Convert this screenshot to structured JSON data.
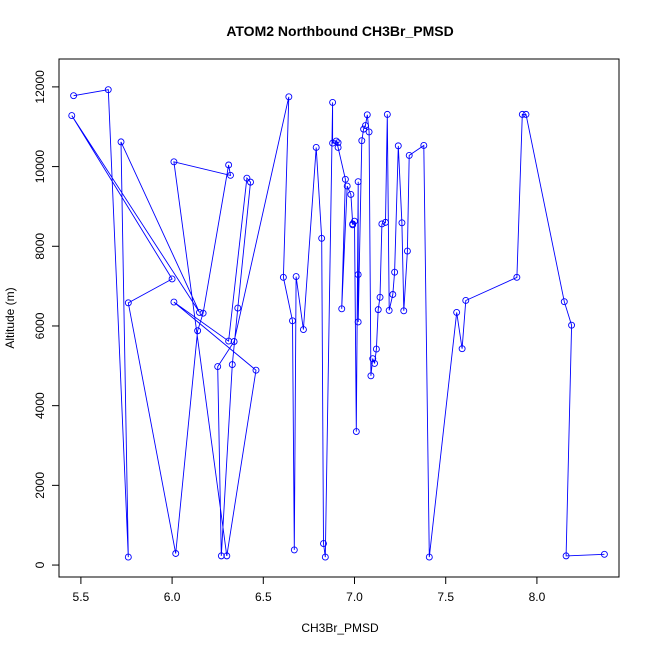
{
  "chart_data": {
    "type": "line",
    "title": "ATOM2 Northbound CH3Br_PMSD",
    "xlabel": "CH3Br_PMSD",
    "ylabel": "Altitude (m)",
    "xlim": [
      5.38,
      8.45
    ],
    "ylim": [
      -300,
      12700
    ],
    "xticks": [
      "5.5",
      "6.0",
      "6.5",
      "7.0",
      "7.5",
      "8.0"
    ],
    "xtick_values": [
      5.5,
      6.0,
      6.5,
      7.0,
      7.5,
      8.0
    ],
    "yticks": [
      "0",
      "2000",
      "4000",
      "6000",
      "8000",
      "10000",
      "12000"
    ],
    "ytick_values": [
      0,
      2000,
      4000,
      6000,
      8000,
      10000,
      12000
    ],
    "series_color": "#0000ff",
    "series": [
      {
        "x": [
          5.46,
          5.65,
          5.76,
          5.72,
          6.15,
          5.45,
          6.0,
          5.76,
          6.02,
          6.14,
          6.17,
          6.31,
          6.32,
          6.01,
          6.3,
          6.46,
          6.01,
          6.31,
          6.41,
          6.43,
          6.36,
          6.33,
          6.27,
          6.25,
          6.34,
          6.64,
          6.61,
          6.66,
          6.67,
          6.68,
          6.72,
          6.79,
          6.82,
          6.83,
          6.84,
          6.88,
          6.88,
          6.91,
          6.9,
          6.91,
          6.95,
          6.93,
          6.96,
          6.98,
          6.99,
          6.99,
          7.0,
          7.01,
          7.02,
          7.02,
          7.02,
          7.04,
          7.05,
          7.06,
          7.07,
          7.08,
          7.09,
          7.1,
          7.11,
          7.12,
          7.13,
          7.14,
          7.15,
          7.17,
          7.18,
          7.19,
          7.21,
          7.22,
          7.24,
          7.26,
          7.27,
          7.29,
          7.3,
          7.38,
          7.41,
          7.56,
          7.59,
          7.61,
          7.89,
          7.92,
          7.94,
          8.15,
          8.19,
          8.16,
          8.37
        ],
        "y": [
          11780,
          11930,
          200,
          10620,
          6340,
          11280,
          7180,
          6580,
          290,
          5880,
          6320,
          10040,
          9780,
          10120,
          230,
          4890,
          6600,
          5620,
          9710,
          9610,
          6450,
          5030,
          230,
          4980,
          5610,
          11750,
          7220,
          6130,
          380,
          7240,
          5910,
          10480,
          8200,
          540,
          200,
          11610,
          10590,
          10600,
          10640,
          10480,
          9680,
          6430,
          9510,
          9300,
          8560,
          8540,
          8630,
          3350,
          9620,
          7290,
          6100,
          10650,
          10940,
          11030,
          11300,
          10870,
          4750,
          5180,
          5060,
          5420,
          6410,
          6720,
          8560,
          8600,
          11310,
          6390,
          6790,
          7350,
          10520,
          8590,
          6380,
          7880,
          10280,
          10530,
          200,
          6340,
          5430,
          6640,
          7220,
          11310,
          11310,
          6610,
          6020,
          230,
          270
        ]
      }
    ]
  }
}
